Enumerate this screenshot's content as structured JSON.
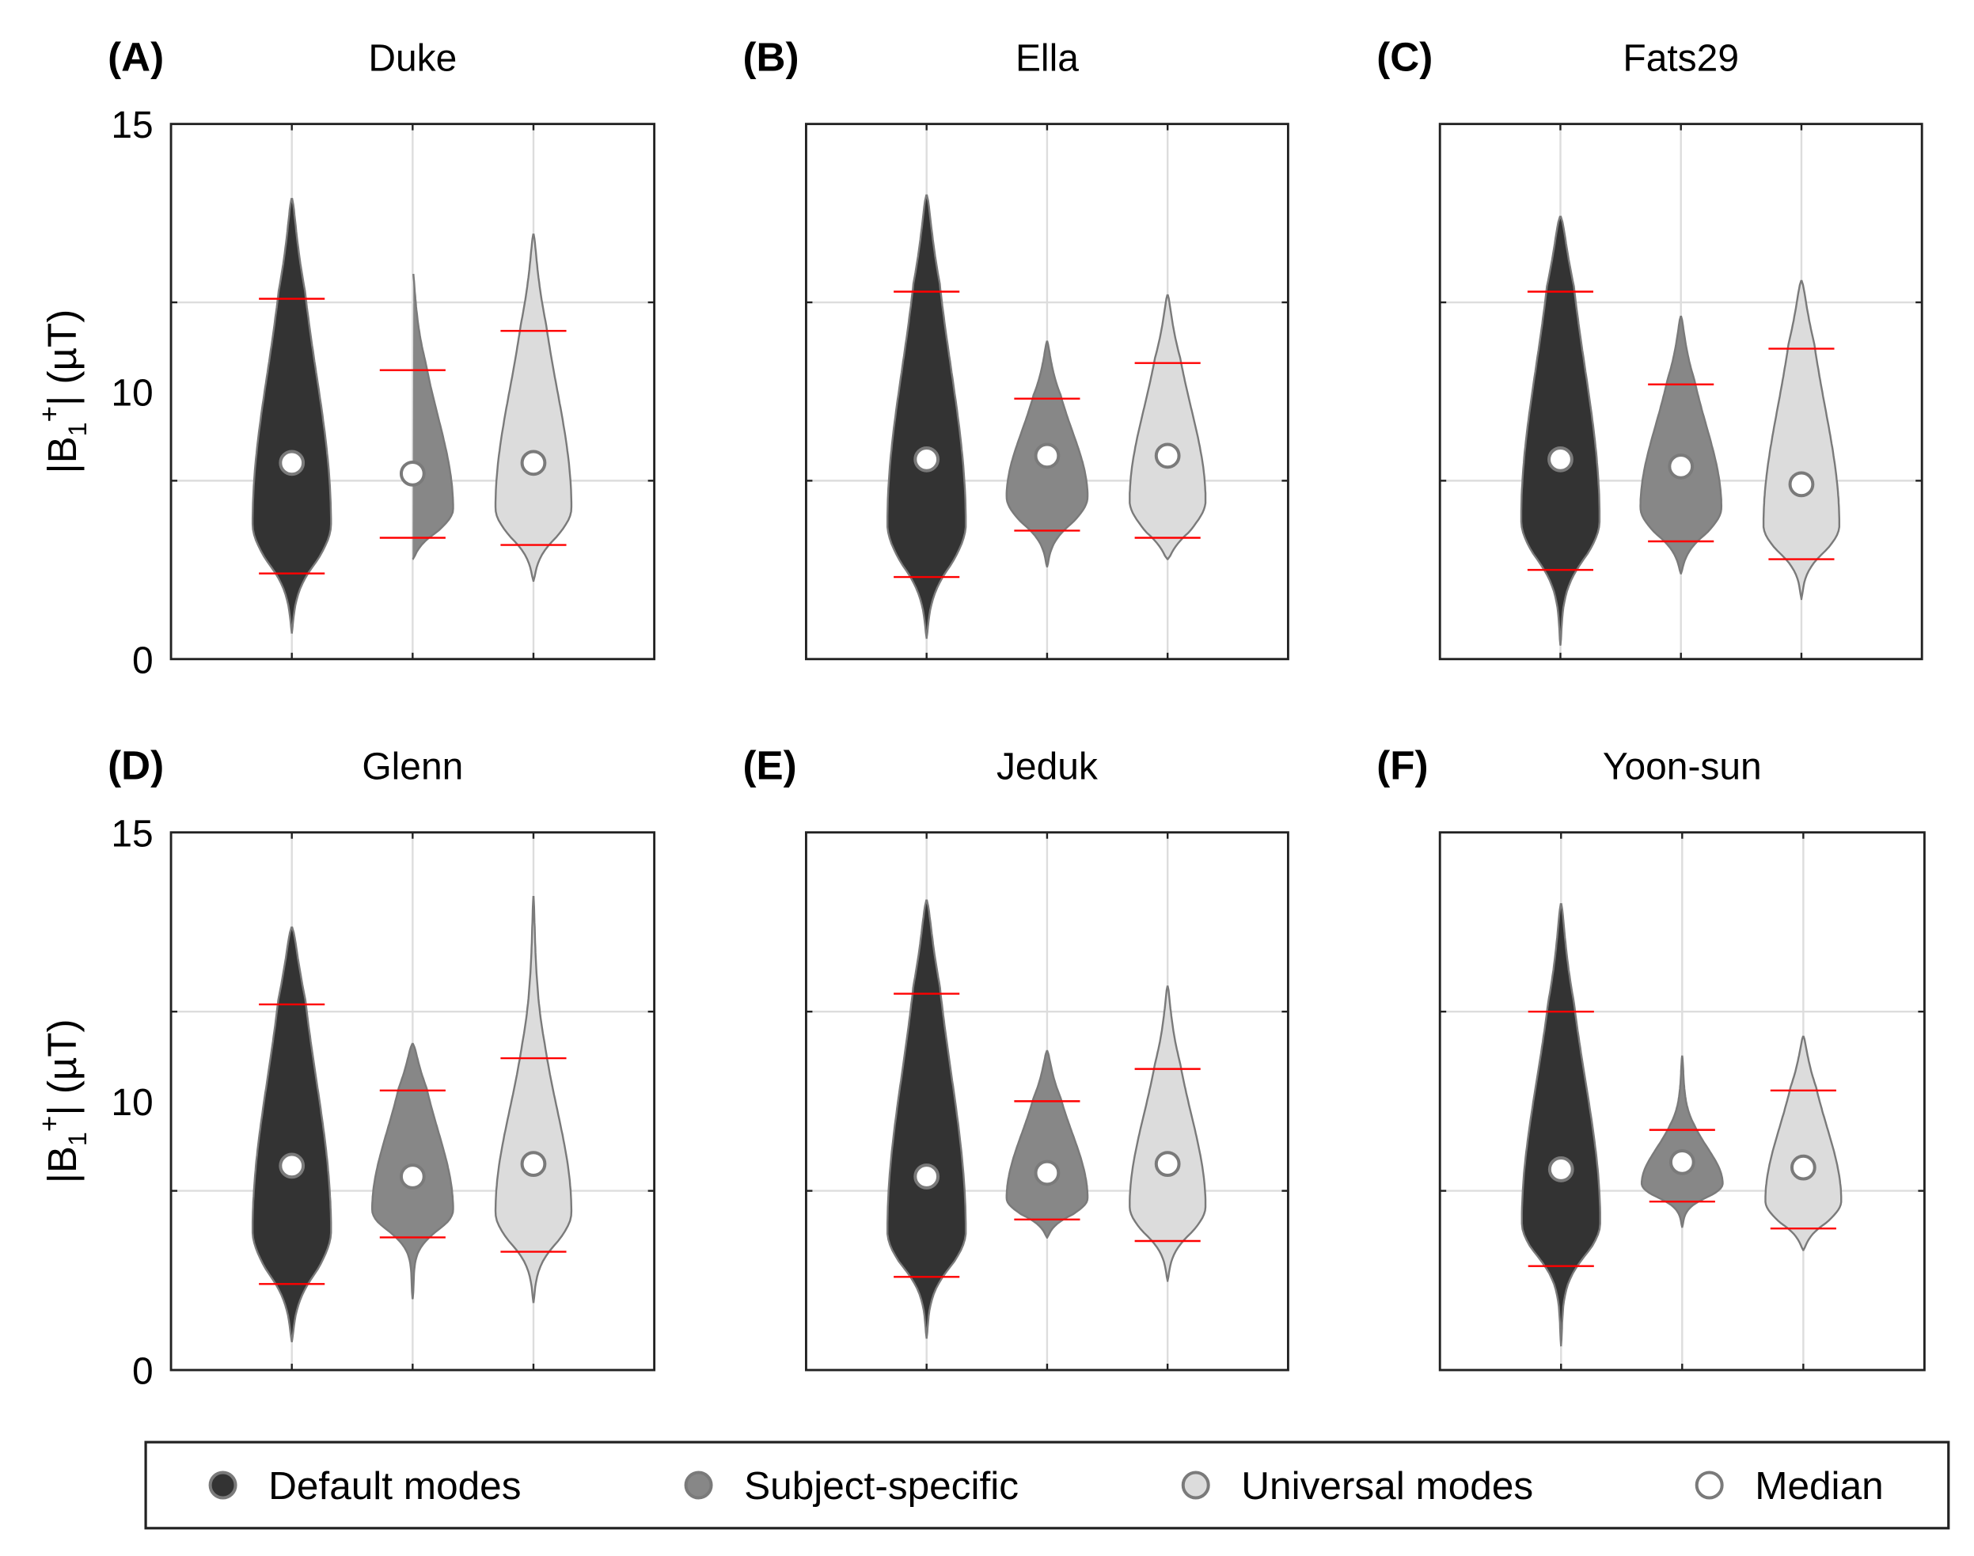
{
  "chart_data": [
    {
      "type": "violin",
      "panel_label": "(A)",
      "title": "Duke",
      "ylim": [
        0,
        15
      ],
      "ytick_labels": [
        "0",
        "10",
        "15"
      ],
      "gridlines": [
        5,
        10
      ],
      "ylabel": {
        "main": "|B",
        "sub": "1",
        "sup": "+",
        "tail": "| (µT)"
      },
      "series": [
        {
          "name": "Default modes",
          "min": 0.75,
          "max": 12.9,
          "p_low": 2.4,
          "p_high": 10.1,
          "median": 5.5
        },
        {
          "name": "Subject-specific",
          "min": 2.8,
          "max": 10.9,
          "p_low": 3.4,
          "p_high": 8.1,
          "median": 5.2
        },
        {
          "name": "Universal modes",
          "min": 2.2,
          "max": 11.9,
          "p_low": 3.2,
          "p_high": 9.2,
          "median": 5.5
        }
      ]
    },
    {
      "type": "violin",
      "panel_label": "(B)",
      "title": "Ella",
      "ylim": [
        0,
        15
      ],
      "gridlines": [
        5,
        10
      ],
      "series": [
        {
          "name": "Default modes",
          "min": 0.6,
          "max": 13.0,
          "p_low": 2.3,
          "p_high": 10.3,
          "median": 5.6
        },
        {
          "name": "Subject-specific",
          "min": 2.6,
          "max": 8.9,
          "p_low": 3.6,
          "p_high": 7.3,
          "median": 5.7
        },
        {
          "name": "Universal modes",
          "min": 2.8,
          "max": 10.2,
          "p_low": 3.4,
          "p_high": 8.3,
          "median": 5.7
        }
      ]
    },
    {
      "type": "violin",
      "panel_label": "(C)",
      "title": "Fats29",
      "ylim": [
        0,
        15
      ],
      "gridlines": [
        5,
        10
      ],
      "series": [
        {
          "name": "Default modes",
          "min": 0.4,
          "max": 12.4,
          "p_low": 2.5,
          "p_high": 10.3,
          "median": 5.6
        },
        {
          "name": "Subject-specific",
          "min": 2.4,
          "max": 9.6,
          "p_low": 3.3,
          "p_high": 7.7,
          "median": 5.4
        },
        {
          "name": "Universal modes",
          "min": 1.7,
          "max": 10.6,
          "p_low": 2.8,
          "p_high": 8.7,
          "median": 4.9
        }
      ]
    },
    {
      "type": "violin",
      "panel_label": "(D)",
      "title": "Glenn",
      "ylim": [
        0,
        15
      ],
      "ytick_labels": [
        "0",
        "10",
        "15"
      ],
      "gridlines": [
        5,
        10
      ],
      "ylabel": {
        "main": "|B",
        "sub": "1",
        "sup": "+",
        "tail": "| (µT)"
      },
      "series": [
        {
          "name": "Default modes",
          "min": 0.8,
          "max": 12.35,
          "p_low": 2.4,
          "p_high": 10.2,
          "median": 5.7
        },
        {
          "name": "Subject-specific",
          "min": 2.0,
          "max": 9.1,
          "p_low": 3.7,
          "p_high": 7.8,
          "median": 5.4
        },
        {
          "name": "Universal modes",
          "min": 1.9,
          "max": 13.2,
          "p_low": 3.3,
          "p_high": 8.7,
          "median": 5.75
        }
      ]
    },
    {
      "type": "violin",
      "panel_label": "(E)",
      "title": "Jeduk",
      "ylim": [
        0,
        15
      ],
      "gridlines": [
        5,
        10
      ],
      "series": [
        {
          "name": "Default modes",
          "min": 0.9,
          "max": 13.1,
          "p_low": 2.6,
          "p_high": 10.5,
          "median": 5.4
        },
        {
          "name": "Subject-specific",
          "min": 3.7,
          "max": 8.9,
          "p_low": 4.2,
          "p_high": 7.5,
          "median": 5.5
        },
        {
          "name": "Universal modes",
          "min": 2.5,
          "max": 10.7,
          "p_low": 3.6,
          "p_high": 8.4,
          "median": 5.75
        }
      ]
    },
    {
      "type": "violin",
      "panel_label": "(F)",
      "title": "Yoon-sun",
      "ylim": [
        0,
        15
      ],
      "gridlines": [
        5,
        10
      ],
      "series": [
        {
          "name": "Default modes",
          "min": 0.7,
          "max": 13.0,
          "p_low": 2.9,
          "p_high": 10.0,
          "median": 5.6
        },
        {
          "name": "Subject-specific",
          "min": 4.0,
          "max": 8.75,
          "p_low": 4.7,
          "p_high": 6.7,
          "median": 5.8
        },
        {
          "name": "Universal modes",
          "min": 3.35,
          "max": 9.3,
          "p_low": 3.95,
          "p_high": 7.8,
          "median": 5.65
        }
      ]
    }
  ],
  "legend": {
    "position": "bottom",
    "items": [
      {
        "label": "Default modes",
        "color": "#333333"
      },
      {
        "label": "Subject-specific",
        "color": "#878787"
      },
      {
        "label": "Universal modes",
        "color": "#dcdcdc"
      },
      {
        "label": "Median",
        "color": "#ffffff"
      }
    ]
  },
  "colors": {
    "outline": "#7a7a7a",
    "percentile_line": "#ff0000",
    "grid": "#dddddd"
  }
}
